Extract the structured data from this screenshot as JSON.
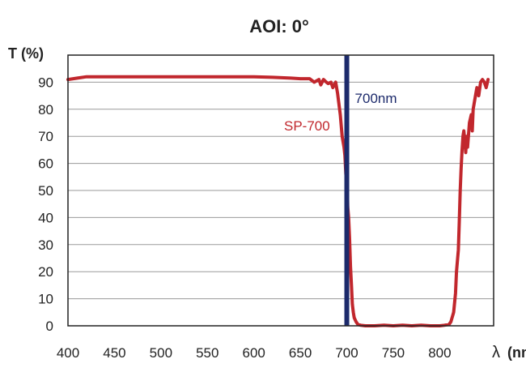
{
  "chart_data": {
    "type": "line",
    "title": "AOI: 0°",
    "ylabel": "T (%)",
    "xlabel_symbol": "λ",
    "xlabel_unit": "(nm)",
    "xlim": [
      400,
      858
    ],
    "ylim": [
      0,
      100
    ],
    "grid": true,
    "x_ticks": [
      400,
      450,
      500,
      550,
      600,
      650,
      700,
      750,
      800
    ],
    "y_ticks": [
      0,
      10,
      20,
      30,
      40,
      50,
      60,
      70,
      80,
      90
    ],
    "series": [
      {
        "name": "SP-700",
        "color": "#c1272d",
        "x": [
          400,
          410,
          420,
          430,
          450,
          480,
          500,
          520,
          550,
          580,
          600,
          620,
          640,
          650,
          660,
          665,
          670,
          672,
          675,
          678,
          680,
          683,
          685,
          688,
          690,
          693,
          695,
          697,
          698,
          699,
          700,
          701,
          702,
          703,
          704,
          705,
          706,
          707,
          708,
          710,
          712,
          715,
          720,
          730,
          740,
          750,
          760,
          770,
          780,
          790,
          800,
          805,
          810,
          812,
          815,
          817,
          818,
          820,
          821,
          822,
          823,
          824,
          825,
          826,
          827,
          828,
          829,
          830,
          832,
          834,
          835,
          836,
          838,
          840,
          842,
          844,
          846,
          848,
          850,
          852
        ],
        "values": [
          91,
          91.5,
          92,
          92,
          92,
          92,
          92,
          92,
          92,
          92,
          92,
          91.8,
          91.5,
          91.3,
          91.3,
          90,
          91,
          89,
          91,
          90,
          89.5,
          90,
          88,
          90,
          86,
          78,
          70,
          66,
          63,
          56,
          61,
          44,
          40,
          32,
          22,
          15,
          8,
          5,
          3,
          1.5,
          0.5,
          0.2,
          0,
          0,
          0.2,
          0,
          0.2,
          0,
          0.2,
          0,
          0,
          0.2,
          0.5,
          1.5,
          5,
          12,
          20,
          28,
          38,
          50,
          58,
          65,
          70,
          72,
          68,
          64,
          70,
          66,
          75,
          78,
          72,
          80,
          84,
          88,
          85,
          90,
          91,
          90,
          88,
          91
        ]
      }
    ],
    "marker": {
      "label": "700nm",
      "x": 700,
      "color": "#1c2a6b"
    }
  }
}
